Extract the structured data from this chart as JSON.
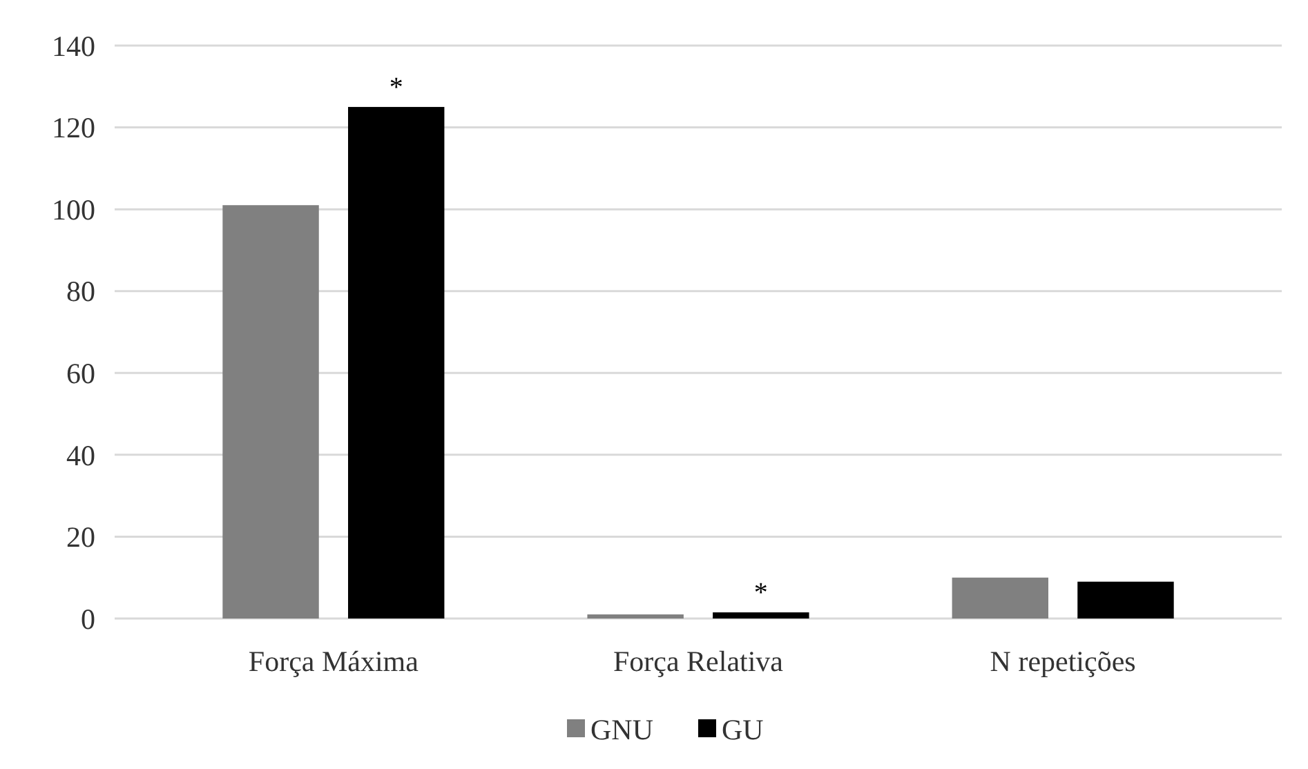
{
  "chart_data": {
    "type": "bar",
    "categories": [
      "Força Máxima",
      "Força Relativa",
      "N repetições"
    ],
    "series": [
      {
        "name": "GNU",
        "color": "#808080",
        "values": [
          101,
          1,
          10
        ]
      },
      {
        "name": "GU",
        "color": "#000000",
        "values": [
          125,
          1.5,
          9
        ]
      }
    ],
    "ylim": [
      0,
      140
    ],
    "yticks": [
      0,
      20,
      40,
      60,
      80,
      100,
      120,
      140
    ],
    "grid": "y",
    "legend": "bottom",
    "annotations": [
      "*",
      "*"
    ]
  }
}
